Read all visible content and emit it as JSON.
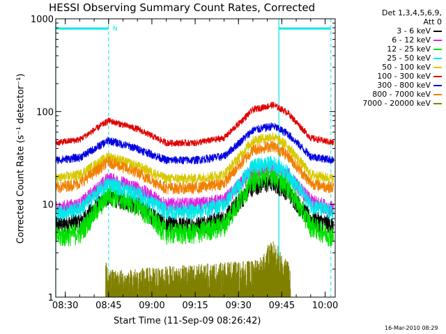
{
  "chart_data": {
    "type": "line",
    "title": "HESSI Observing Summary Count Rates, Corrected",
    "xlabel": "Start Time (11-Sep-09 08:26:42)",
    "ylabel": "Corrected Count Rate (s⁻¹ detector⁻¹)",
    "yscale": "log",
    "ylim": [
      1,
      1000
    ],
    "ytick_labels": [
      "1",
      "10",
      "100",
      "1000"
    ],
    "xtick_labels": [
      "08:30",
      "08:45",
      "09:00",
      "09:15",
      "09:30",
      "09:45",
      "10:00"
    ],
    "xlim": [
      "08:26:42",
      "10:03:30"
    ],
    "legend_header": [
      "Det 1,3,4,5,6,9,",
      "Att 0"
    ],
    "legend_placement": "outside right",
    "series": [
      {
        "name": "3 - 6 keV",
        "color": "#000000",
        "x": [
          "08:26:42",
          "08:35",
          "08:45",
          "08:55",
          "09:05",
          "09:15",
          "09:25",
          "09:35",
          "09:42",
          "09:47",
          "09:55",
          "10:03"
        ],
        "values": [
          6,
          6.5,
          12.5,
          10,
          6,
          6,
          7,
          16,
          17.5,
          14,
          7,
          6
        ]
      },
      {
        "name": "6 - 12 keV",
        "color": "#e020e0",
        "x": [
          "08:26:42",
          "08:35",
          "08:45",
          "08:55",
          "09:05",
          "09:15",
          "09:25",
          "09:35",
          "09:42",
          "09:47",
          "09:55",
          "10:03"
        ],
        "values": [
          9,
          10,
          19,
          15,
          10,
          10,
          11,
          23,
          25,
          21,
          11,
          9
        ]
      },
      {
        "name": "12 - 25 keV",
        "color": "#00e000",
        "x": [
          "08:26:42",
          "08:35",
          "08:45",
          "08:55",
          "09:05",
          "09:15",
          "09:25",
          "09:35",
          "09:42",
          "09:47",
          "09:55",
          "10:03"
        ],
        "values": [
          4.5,
          5,
          13,
          10,
          5,
          5,
          6,
          19,
          21,
          16,
          6,
          4.5
        ]
      },
      {
        "name": "25 - 50 keV",
        "color": "#00e8e8",
        "x": [
          "08:26:42",
          "08:35",
          "08:45",
          "08:55",
          "09:05",
          "09:15",
          "09:25",
          "09:35",
          "09:42",
          "09:47",
          "09:55",
          "10:03"
        ],
        "values": [
          8,
          9,
          17,
          13,
          8.5,
          8.5,
          10,
          26,
          28,
          22,
          10,
          8
        ]
      },
      {
        "name": "50 - 100 keV",
        "color": "#d8c800",
        "x": [
          "08:26:42",
          "08:35",
          "08:45",
          "08:55",
          "09:05",
          "09:15",
          "09:25",
          "09:35",
          "09:42",
          "09:47",
          "09:55",
          "10:03"
        ],
        "values": [
          19,
          21,
          33,
          26,
          19,
          19,
          21,
          49,
          54,
          43,
          21,
          19
        ]
      },
      {
        "name": "100 - 300 keV",
        "color": "#e00000",
        "x": [
          "08:26:42",
          "08:35",
          "08:45",
          "08:55",
          "09:05",
          "09:15",
          "09:25",
          "09:35",
          "09:42",
          "09:47",
          "09:55",
          "10:03"
        ],
        "values": [
          46,
          50,
          80,
          65,
          46,
          46,
          52,
          105,
          118,
          98,
          52,
          46
        ]
      },
      {
        "name": "300 - 800 keV",
        "color": "#0000e0",
        "x": [
          "08:26:42",
          "08:35",
          "08:45",
          "08:55",
          "09:05",
          "09:15",
          "09:25",
          "09:35",
          "09:42",
          "09:47",
          "09:55",
          "10:03"
        ],
        "values": [
          30,
          32,
          49,
          40,
          30,
          30,
          33,
          63,
          70,
          58,
          33,
          30
        ]
      },
      {
        "name": "800 - 7000 keV",
        "color": "#f08000",
        "x": [
          "08:26:42",
          "08:35",
          "08:45",
          "08:55",
          "09:05",
          "09:15",
          "09:25",
          "09:35",
          "09:42",
          "09:47",
          "09:55",
          "10:03"
        ],
        "values": [
          15,
          17,
          29,
          22,
          15,
          15,
          17,
          39,
          43,
          34,
          17,
          15
        ]
      },
      {
        "name": "7000 - 20000 keV",
        "color": "#808000",
        "x": [
          "08:44",
          "08:45",
          "09:37",
          "09:40",
          "09:42",
          "09:44",
          "09:46",
          "09:48"
        ],
        "values": [
          1.9,
          1.4,
          1.8,
          2.6,
          2.9,
          2.5,
          1.9,
          1.6
        ]
      }
    ],
    "annotations": [
      {
        "text": "N",
        "color": "#00e8e8",
        "at": "08:46"
      }
    ],
    "markers": {
      "color": "#00e8e8",
      "solid_lines": [
        "08:26:42",
        "09:44"
      ],
      "dashed_lines": [
        "08:45",
        "10:02"
      ],
      "top_bars": [
        [
          "08:26:42",
          "08:45"
        ],
        [
          "09:44",
          "10:02"
        ]
      ]
    },
    "grid": false
  },
  "footer": {
    "date": "16-Mar-2010 08:29"
  }
}
